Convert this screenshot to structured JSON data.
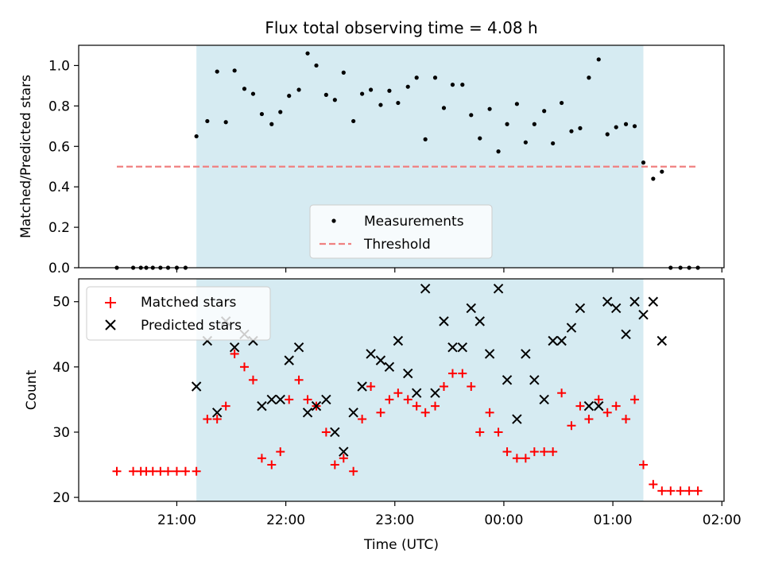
{
  "chart_data": [
    {
      "type": "scatter",
      "title": "Flux total observing time = 4.08 h",
      "ylabel": "Matched/Predicted stars",
      "xlabel": "",
      "ylim": [
        0,
        1.1
      ],
      "yticks": [
        "0.0",
        "0.2",
        "0.4",
        "0.6",
        "0.8",
        "1.0"
      ],
      "ytick_values": [
        0,
        0.2,
        0.4,
        0.6,
        0.8,
        1.0
      ],
      "xlim": [
        20.1,
        26.02
      ],
      "observing_window": [
        21.18,
        25.28
      ],
      "threshold": {
        "value": 0.5,
        "x_range": [
          20.45,
          25.78
        ],
        "color": "#f08080"
      },
      "legend": {
        "placement": "lower-center",
        "entries": [
          "Measurements",
          "Threshold"
        ]
      },
      "series": [
        {
          "name": "Measurements",
          "color": "#000000",
          "points": [
            [
              20.45,
              0
            ],
            [
              20.6,
              0
            ],
            [
              20.67,
              0
            ],
            [
              20.72,
              0
            ],
            [
              20.78,
              0
            ],
            [
              20.85,
              0
            ],
            [
              20.92,
              0
            ],
            [
              21.0,
              0
            ],
            [
              21.08,
              0
            ],
            [
              21.18,
              0.65
            ],
            [
              21.28,
              0.725
            ],
            [
              21.37,
              0.97
            ],
            [
              21.45,
              0.72
            ],
            [
              21.53,
              0.975
            ],
            [
              21.62,
              0.885
            ],
            [
              21.7,
              0.86
            ],
            [
              21.78,
              0.76
            ],
            [
              21.87,
              0.71
            ],
            [
              21.95,
              0.77
            ],
            [
              22.03,
              0.85
            ],
            [
              22.12,
              0.88
            ],
            [
              22.2,
              1.06
            ],
            [
              22.28,
              1.0
            ],
            [
              22.37,
              0.855
            ],
            [
              22.45,
              0.83
            ],
            [
              22.53,
              0.965
            ],
            [
              22.62,
              0.725
            ],
            [
              22.7,
              0.86
            ],
            [
              22.78,
              0.88
            ],
            [
              22.87,
              0.805
            ],
            [
              22.95,
              0.875
            ],
            [
              23.03,
              0.815
            ],
            [
              23.12,
              0.895
            ],
            [
              23.2,
              0.94
            ],
            [
              23.28,
              0.635
            ],
            [
              23.37,
              0.94
            ],
            [
              23.45,
              0.79
            ],
            [
              23.53,
              0.905
            ],
            [
              23.62,
              0.905
            ],
            [
              23.7,
              0.755
            ],
            [
              23.78,
              0.64
            ],
            [
              23.87,
              0.785
            ],
            [
              23.95,
              0.575
            ],
            [
              24.03,
              0.71
            ],
            [
              24.12,
              0.81
            ],
            [
              24.2,
              0.62
            ],
            [
              24.28,
              0.71
            ],
            [
              24.37,
              0.775
            ],
            [
              24.45,
              0.615
            ],
            [
              24.53,
              0.815
            ],
            [
              24.62,
              0.675
            ],
            [
              24.7,
              0.69
            ],
            [
              24.78,
              0.94
            ],
            [
              24.87,
              1.03
            ],
            [
              24.95,
              0.66
            ],
            [
              25.03,
              0.695
            ],
            [
              25.12,
              0.71
            ],
            [
              25.2,
              0.7
            ],
            [
              25.28,
              0.52
            ],
            [
              25.37,
              0.44
            ],
            [
              25.45,
              0.475
            ],
            [
              25.53,
              0
            ],
            [
              25.62,
              0
            ],
            [
              25.7,
              0
            ],
            [
              25.78,
              0
            ]
          ]
        }
      ]
    },
    {
      "type": "scatter",
      "title": "",
      "xlabel": "Time (UTC)",
      "ylabel": "Count",
      "ylim": [
        19.4,
        53.5
      ],
      "yticks": [
        "20",
        "30",
        "40",
        "50"
      ],
      "ytick_values": [
        20,
        30,
        40,
        50
      ],
      "xlim": [
        20.1,
        26.02
      ],
      "xticks": [
        "21:00",
        "22:00",
        "23:00",
        "00:00",
        "01:00",
        "02:00"
      ],
      "xtick_values": [
        21,
        22,
        23,
        24,
        25,
        26
      ],
      "observing_window": [
        21.18,
        25.28
      ],
      "legend": {
        "placement": "upper-left",
        "entries": [
          "Matched stars",
          "Predicted stars"
        ]
      },
      "series": [
        {
          "name": "Matched stars",
          "marker": "plus",
          "color": "#ff0000",
          "points": [
            [
              20.45,
              24
            ],
            [
              20.6,
              24
            ],
            [
              20.67,
              24
            ],
            [
              20.72,
              24
            ],
            [
              20.78,
              24
            ],
            [
              20.85,
              24
            ],
            [
              20.92,
              24
            ],
            [
              21.0,
              24
            ],
            [
              21.08,
              24
            ],
            [
              21.18,
              24
            ],
            [
              21.28,
              32
            ],
            [
              21.37,
              32
            ],
            [
              21.45,
              34
            ],
            [
              21.53,
              42
            ],
            [
              21.62,
              40
            ],
            [
              21.7,
              38
            ],
            [
              21.78,
              26
            ],
            [
              21.87,
              25
            ],
            [
              21.95,
              27
            ],
            [
              22.03,
              35
            ],
            [
              22.12,
              38
            ],
            [
              22.2,
              35
            ],
            [
              22.28,
              34
            ],
            [
              22.37,
              30
            ],
            [
              22.45,
              25
            ],
            [
              22.53,
              26
            ],
            [
              22.62,
              24
            ],
            [
              22.7,
              32
            ],
            [
              22.78,
              37
            ],
            [
              22.87,
              33
            ],
            [
              22.95,
              35
            ],
            [
              23.03,
              36
            ],
            [
              23.12,
              35
            ],
            [
              23.2,
              34
            ],
            [
              23.28,
              33
            ],
            [
              23.37,
              34
            ],
            [
              23.45,
              37
            ],
            [
              23.53,
              39
            ],
            [
              23.62,
              39
            ],
            [
              23.7,
              37
            ],
            [
              23.78,
              30
            ],
            [
              23.87,
              33
            ],
            [
              23.95,
              30
            ],
            [
              24.03,
              27
            ],
            [
              24.12,
              26
            ],
            [
              24.2,
              26
            ],
            [
              24.28,
              27
            ],
            [
              24.37,
              27
            ],
            [
              24.45,
              27
            ],
            [
              24.53,
              36
            ],
            [
              24.62,
              31
            ],
            [
              24.7,
              34
            ],
            [
              24.78,
              32
            ],
            [
              24.87,
              35
            ],
            [
              24.95,
              33
            ],
            [
              25.03,
              34
            ],
            [
              25.12,
              32
            ],
            [
              25.2,
              35
            ],
            [
              25.28,
              25
            ],
            [
              25.37,
              22
            ],
            [
              25.45,
              21
            ],
            [
              25.53,
              21
            ],
            [
              25.62,
              21
            ],
            [
              25.7,
              21
            ],
            [
              25.78,
              21
            ]
          ]
        },
        {
          "name": "Predicted stars",
          "marker": "x",
          "color": "#000000",
          "points": [
            [
              21.18,
              37
            ],
            [
              21.28,
              44
            ],
            [
              21.37,
              33
            ],
            [
              21.45,
              47
            ],
            [
              21.53,
              43
            ],
            [
              21.62,
              45
            ],
            [
              21.7,
              44
            ],
            [
              21.78,
              34
            ],
            [
              21.87,
              35
            ],
            [
              21.95,
              35
            ],
            [
              22.03,
              41
            ],
            [
              22.12,
              43
            ],
            [
              22.2,
              33
            ],
            [
              22.28,
              34
            ],
            [
              22.37,
              35
            ],
            [
              22.45,
              30
            ],
            [
              22.53,
              27
            ],
            [
              22.62,
              33
            ],
            [
              22.7,
              37
            ],
            [
              22.78,
              42
            ],
            [
              22.87,
              41
            ],
            [
              22.95,
              40
            ],
            [
              23.03,
              44
            ],
            [
              23.12,
              39
            ],
            [
              23.2,
              36
            ],
            [
              23.28,
              52
            ],
            [
              23.37,
              36
            ],
            [
              23.45,
              47
            ],
            [
              23.53,
              43
            ],
            [
              23.62,
              43
            ],
            [
              23.7,
              49
            ],
            [
              23.78,
              47
            ],
            [
              23.87,
              42
            ],
            [
              23.95,
              52
            ],
            [
              24.03,
              38
            ],
            [
              24.12,
              32
            ],
            [
              24.2,
              42
            ],
            [
              24.28,
              38
            ],
            [
              24.37,
              35
            ],
            [
              24.45,
              44
            ],
            [
              24.53,
              44
            ],
            [
              24.62,
              46
            ],
            [
              24.7,
              49
            ],
            [
              24.78,
              34
            ],
            [
              24.87,
              34
            ],
            [
              24.95,
              50
            ],
            [
              25.03,
              49
            ],
            [
              25.12,
              45
            ],
            [
              25.2,
              50
            ],
            [
              25.28,
              48
            ],
            [
              25.37,
              50
            ],
            [
              25.45,
              44
            ]
          ]
        }
      ]
    }
  ]
}
